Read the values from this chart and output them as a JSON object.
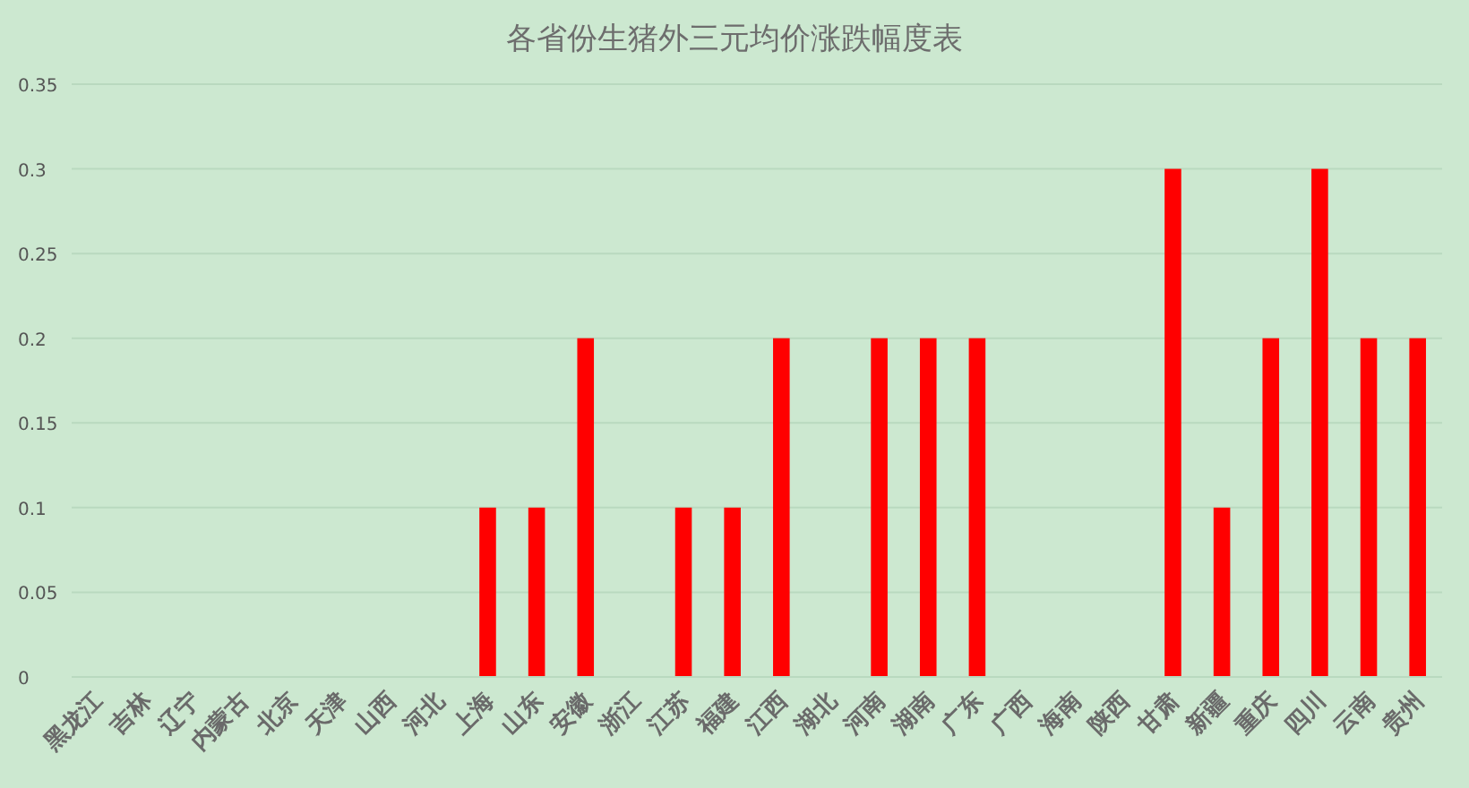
{
  "chart_data": {
    "type": "bar",
    "title": "各省份生猪外三元均价涨跌幅度表",
    "categories": [
      "黑龙江",
      "吉林",
      "辽宁",
      "内蒙古",
      "北京",
      "天津",
      "山西",
      "河北",
      "上海",
      "山东",
      "安徽",
      "浙江",
      "江苏",
      "福建",
      "江西",
      "湖北",
      "河南",
      "湖南",
      "广东",
      "广西",
      "海南",
      "陕西",
      "甘肃",
      "新疆",
      "重庆",
      "四川",
      "云南",
      "贵州"
    ],
    "values": [
      0,
      0,
      0,
      0,
      0,
      0,
      0,
      0,
      0.1,
      0.1,
      0.2,
      0,
      0.1,
      0.1,
      0.2,
      0,
      0.2,
      0.2,
      0.2,
      0,
      0,
      0,
      0.3,
      0.1,
      0.2,
      0.3,
      0.2,
      0.2
    ],
    "color": "#ff0000",
    "ylim": [
      0,
      0.35
    ],
    "yticks": [
      0,
      0.05,
      0.1,
      0.15,
      0.2,
      0.25,
      0.3,
      0.35
    ],
    "grid": "y"
  }
}
